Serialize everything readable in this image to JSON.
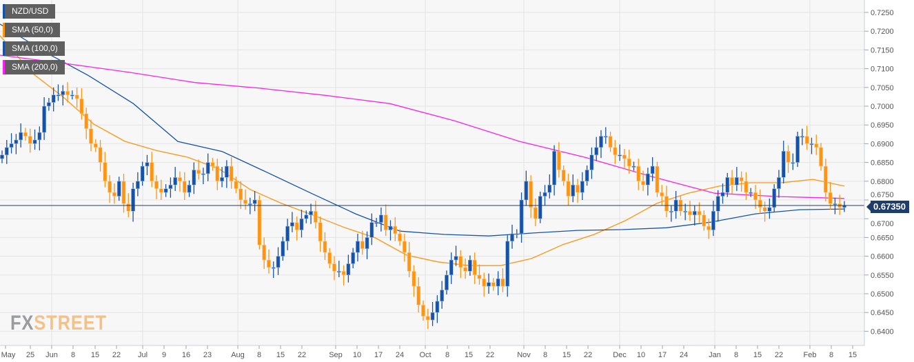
{
  "legend": [
    {
      "label": "NZD/USD",
      "color": "#1453a8"
    },
    {
      "label": "SMA (50,0)",
      "color": "#ff9410"
    },
    {
      "label": "SMA (100,0)",
      "color": "#1453a8"
    },
    {
      "label": "SMA (200,0)",
      "color": "#ff1ef0"
    }
  ],
  "logo": {
    "fx": "FX",
    "street": "STREET"
  },
  "current_price": {
    "label": "0.67350",
    "value": 0.6735
  },
  "chart_data": {
    "type": "candlestick",
    "title": "NZD/USD",
    "ylim": [
      0.638,
      0.727
    ],
    "yticks": [
      0.725,
      0.72,
      0.715,
      0.71,
      0.705,
      0.7,
      0.695,
      0.69,
      0.685,
      0.68,
      0.675,
      0.67,
      0.665,
      0.66,
      0.655,
      0.65,
      0.645,
      0.64
    ],
    "xtick_labels": [
      "May",
      "25",
      "Jun",
      "8",
      "15",
      "22",
      "Jul",
      "9",
      "16",
      "23",
      "Aug",
      "8",
      "15",
      "22",
      "Sep",
      "10",
      "17",
      "24",
      "Oct",
      "8",
      "15",
      "22",
      "Nov",
      "8",
      "15",
      "22",
      "Dec",
      "10",
      "17",
      "24",
      "Jan",
      "8",
      "15",
      "22",
      "Feb",
      "8",
      "15"
    ],
    "colors": {
      "up": "#1453a8",
      "down": "#ff9410"
    },
    "closes": [
      0.687,
      0.689,
      0.69,
      0.691,
      0.693,
      0.692,
      0.69,
      0.691,
      0.693,
      0.7,
      0.701,
      0.703,
      0.703,
      0.704,
      0.703,
      0.703,
      0.702,
      0.698,
      0.694,
      0.69,
      0.689,
      0.685,
      0.68,
      0.677,
      0.676,
      0.68,
      0.674,
      0.672,
      0.678,
      0.68,
      0.684,
      0.685,
      0.68,
      0.678,
      0.677,
      0.678,
      0.679,
      0.681,
      0.68,
      0.677,
      0.679,
      0.683,
      0.682,
      0.682,
      0.685,
      0.684,
      0.68,
      0.681,
      0.684,
      0.68,
      0.678,
      0.675,
      0.674,
      0.674,
      0.675,
      0.663,
      0.659,
      0.657,
      0.657,
      0.66,
      0.664,
      0.668,
      0.669,
      0.667,
      0.67,
      0.671,
      0.672,
      0.669,
      0.664,
      0.661,
      0.658,
      0.656,
      0.656,
      0.655,
      0.658,
      0.661,
      0.664,
      0.662,
      0.665,
      0.669,
      0.669,
      0.671,
      0.667,
      0.668,
      0.666,
      0.664,
      0.661,
      0.656,
      0.652,
      0.647,
      0.644,
      0.643,
      0.645,
      0.648,
      0.651,
      0.655,
      0.659,
      0.66,
      0.657,
      0.656,
      0.659,
      0.655,
      0.654,
      0.652,
      0.653,
      0.652,
      0.654,
      0.652,
      0.664,
      0.666,
      0.666,
      0.675,
      0.68,
      0.673,
      0.67,
      0.676,
      0.677,
      0.679,
      0.688,
      0.683,
      0.68,
      0.676,
      0.679,
      0.677,
      0.68,
      0.683,
      0.687,
      0.689,
      0.692,
      0.692,
      0.689,
      0.687,
      0.687,
      0.686,
      0.684,
      0.684,
      0.68,
      0.679,
      0.682,
      0.684,
      0.677,
      0.676,
      0.672,
      0.672,
      0.675,
      0.672,
      0.672,
      0.671,
      0.672,
      0.671,
      0.668,
      0.667,
      0.672,
      0.676,
      0.677,
      0.681,
      0.679,
      0.681,
      0.68,
      0.677,
      0.677,
      0.675,
      0.673,
      0.672,
      0.673,
      0.678,
      0.681,
      0.688,
      0.685,
      0.685,
      0.692,
      0.692,
      0.69,
      0.69,
      0.689,
      0.684,
      0.677,
      0.674,
      0.674,
      0.673,
      0.6735
    ],
    "series": [
      {
        "name": "SMA (50,0)",
        "color": "#ff9410",
        "values": [
          0.7188,
          0.709,
          0.7026,
          0.6952,
          0.6906,
          0.6882,
          0.6864,
          0.6833,
          0.6778,
          0.6741,
          0.671,
          0.6677,
          0.6649,
          0.6603,
          0.6585,
          0.6575,
          0.6575,
          0.6594,
          0.6631,
          0.6658,
          0.6695,
          0.6741,
          0.6768,
          0.6787,
          0.6796,
          0.6796,
          0.6805,
          0.6787
        ]
      },
      {
        "name": "SMA (100,0)",
        "color": "#1453a8",
        "values": [
          0.7219,
          0.7145,
          0.7081,
          0.7007,
          0.6906,
          0.6879,
          0.6824,
          0.6768,
          0.6713,
          0.6667,
          0.6658,
          0.6654,
          0.6662,
          0.6669,
          0.6671,
          0.6676,
          0.6691,
          0.6713,
          0.6724,
          0.6726
        ]
      },
      {
        "name": "SMA (200,0)",
        "color": "#ff1ef0",
        "values": [
          0.7136,
          0.7114,
          0.709,
          0.7063,
          0.7048,
          0.7029,
          0.7007,
          0.6961,
          0.6906,
          0.6864,
          0.6814,
          0.6768,
          0.6759,
          0.6754
        ]
      }
    ]
  }
}
